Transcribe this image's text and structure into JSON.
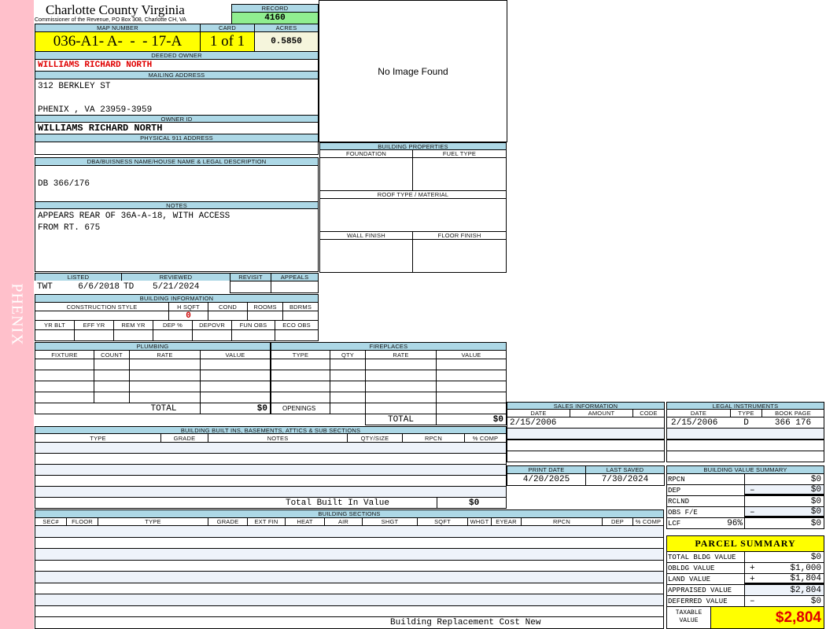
{
  "sidebar": {
    "label": "PHENIX"
  },
  "header": {
    "title": "Charlotte County Virginia",
    "subtitle": "Commissioner of the Revenue, PO Box 308, Charlotte CH, VA",
    "record_label": "RECORD",
    "record_value": "4160"
  },
  "image": {
    "placeholder": "No Image Found"
  },
  "parcel": {
    "map_label": "MAP NUMBER",
    "map_value": "036-A1- A-  -  - 17-A",
    "card_label": "CARD",
    "card_value": "1 of 1",
    "acres_label": "ACRES",
    "acres_value": "0.5850"
  },
  "owner": {
    "deeded_label": "DEEDED OWNER",
    "deeded_value": "WILLIAMS RICHARD NORTH",
    "mailing_label": "MAILING ADDRESS",
    "mailing_value": "312 BERKLEY ST\n\nPHENIX , VA 23959-3959",
    "owner_id_label": "OWNER ID",
    "owner_id_value": "WILLIAMS RICHARD NORTH",
    "physical_label": "PHYSICAL 911 ADDRESS"
  },
  "legal": {
    "dba_label": "DBA/BUISNESS NAME/HOUSE NAME & LEGAL DESCRIPTION",
    "dba_value": "DB 366/176",
    "notes_label": "NOTES",
    "notes_value": "APPEARS REAR OF 36A-A-18, WITH ACCESS\nFROM RT. 675"
  },
  "listing": {
    "labels": [
      "LISTED",
      "REVIEWED",
      "REVISIT",
      "APPEALS"
    ],
    "listed_by": "TWT",
    "listed_date": "6/6/2018",
    "reviewed_by": "TD",
    "reviewed_date": "5/21/2024"
  },
  "building_info": {
    "title": "BUILDING INFORMATION",
    "row1_labels": [
      "CONSTRUCTION STYLE",
      "H SQFT",
      "COND",
      "ROOMS",
      "BDRMS"
    ],
    "hsqft": "0",
    "row2_labels": [
      "YR BLT",
      "EFF YR",
      "REM YR",
      "DEP %",
      "DEPOVR",
      "FUN OBS",
      "ECO OBS"
    ]
  },
  "properties": {
    "title": "BUILDING PROPERTIES",
    "foundation": "FOUNDATION",
    "fuel": "FUEL TYPE",
    "roof": "ROOF TYPE / MATERIAL",
    "wall": "WALL FINISH",
    "floor": "FLOOR FINISH"
  },
  "plumbing": {
    "title": "PLUMBING",
    "columns": [
      "FIXTURE",
      "COUNT",
      "RATE",
      "VALUE"
    ],
    "total_label": "TOTAL",
    "total_value": "$0"
  },
  "fireplaces": {
    "title": "FIREPLACES",
    "columns": [
      "TYPE",
      "QTY",
      "RATE",
      "VALUE"
    ],
    "openings_label": "OPENINGS",
    "total_label": "TOTAL",
    "total_value": "$0"
  },
  "builtins": {
    "title": "BUILDING BUILT INS, BASEMENTS, ATTICS & SUB SECTIONS",
    "columns": [
      "TYPE",
      "GRADE",
      "NOTES",
      "QTY/SIZE",
      "RPCN",
      "% COMP"
    ],
    "total_label": "Total Built In Value",
    "total_value": "$0"
  },
  "sections": {
    "title": "BUILDING SECTIONS",
    "columns": [
      "SEC#",
      "FLOOR",
      "TYPE",
      "GRADE",
      "EXT FIN",
      "HEAT",
      "AIR",
      "SHGT",
      "SQFT",
      "WHGT",
      "EYEAR",
      "RPCN",
      "DEP",
      "% COMP"
    ],
    "footer_label": "Building Replacement Cost New"
  },
  "sales": {
    "title": "SALES INFORMATION",
    "columns": [
      "DATE",
      "AMOUNT",
      "CODE"
    ],
    "rows": [
      {
        "date": "2/15/2006"
      }
    ]
  },
  "instruments": {
    "title": "LEGAL INSTRUMENTS",
    "columns": [
      "DATE",
      "TYPE",
      "BOOK PAGE"
    ],
    "rows": [
      {
        "date": "2/15/2006",
        "type": "D",
        "bookpage": "366 176"
      }
    ]
  },
  "dates": {
    "print_label": "PRINT DATE",
    "print_value": "4/20/2025",
    "saved_label": "LAST SAVED",
    "saved_value": "7/30/2024"
  },
  "bvs": {
    "title": "BUILDING VALUE SUMMARY",
    "rows": [
      {
        "label": "RPCN",
        "op": "",
        "value": "$0"
      },
      {
        "label": "DEP",
        "op": "–",
        "value": "$0"
      },
      {
        "label": "RCLND",
        "op": "",
        "value": "$0"
      },
      {
        "label": "OBS F/E",
        "op": "–",
        "value": "$0"
      },
      {
        "label": "LCF",
        "op": "",
        "value": "$0"
      }
    ],
    "lcf_pct": "96%"
  },
  "summary": {
    "title": "PARCEL SUMMARY",
    "rows": [
      {
        "label": "TOTAL BLDG VALUE",
        "op": "",
        "value": "$0"
      },
      {
        "label": "OBLDG VALUE",
        "op": "+",
        "value": "$1,000"
      },
      {
        "label": "LAND VALUE",
        "op": "+",
        "value": "$1,804"
      },
      {
        "label": "APPRAISED VALUE",
        "op": "",
        "value": "$2,804"
      },
      {
        "label": "DEFERRED VALUE",
        "op": "–",
        "value": "$0"
      }
    ],
    "taxable_label": "TAXABLE\nVALUE",
    "taxable_value": "$2,804"
  },
  "colors": {
    "label_band": "#add8e6",
    "record": "#90ee90",
    "highlight": "#ffff00",
    "owner_red": "#e00000",
    "sidebar": "#ffc0cb"
  }
}
